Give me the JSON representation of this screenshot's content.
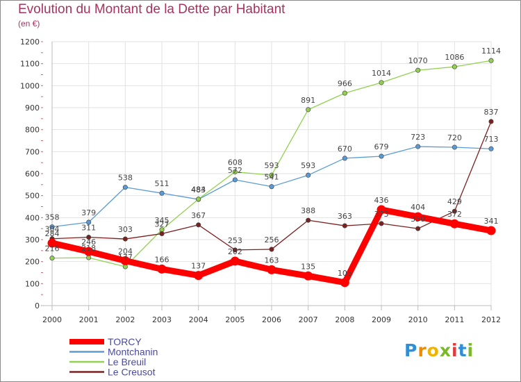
{
  "header": {
    "title": "Evolution du Montant de la Dette par Habitant",
    "unit": "(en €)"
  },
  "logo": {
    "letters": [
      "P",
      "r",
      "o",
      "x",
      "i",
      "t",
      "i"
    ],
    "colors": [
      "#2f8fd6",
      "#f08a00",
      "#f0b400",
      "#78b928",
      "#e23a3a",
      "#2f8fd6",
      "#78b928"
    ]
  },
  "chart_data": {
    "type": "line",
    "title": "Evolution du Montant de la Dette par Habitant",
    "ylabel": "(en €)",
    "xlabel": "",
    "categories": [
      "2000",
      "2001",
      "2002",
      "2003",
      "2004",
      "2005",
      "2006",
      "2007",
      "2008",
      "2009",
      "2010",
      "2011",
      "2012"
    ],
    "ylim": [
      0,
      1200
    ],
    "yticks": [
      0,
      100,
      200,
      300,
      400,
      500,
      600,
      700,
      800,
      900,
      1000,
      1100,
      1200
    ],
    "grid": true,
    "legend_position": "bottom-left",
    "series": [
      {
        "name": "TORCY",
        "color": "#ff0000",
        "emphasis": true,
        "values": [
          284,
          246,
          204,
          166,
          137,
          202,
          163,
          135,
          105,
          436,
          404,
          372,
          341
        ]
      },
      {
        "name": "Montchanin",
        "color": "#5b9bd5",
        "values": [
          358,
          379,
          538,
          511,
          483,
          572,
          541,
          593,
          670,
          679,
          723,
          720,
          713
        ]
      },
      {
        "name": "Le Breuil",
        "color": "#92d050",
        "values": [
          216,
          218,
          177,
          345,
          484,
          608,
          593,
          891,
          966,
          1014,
          1070,
          1086,
          1114
        ]
      },
      {
        "name": "Le Creusot",
        "color": "#7b2020",
        "values": [
          304,
          311,
          303,
          327,
          367,
          253,
          256,
          388,
          363,
          373,
          350,
          429,
          837
        ]
      }
    ]
  }
}
